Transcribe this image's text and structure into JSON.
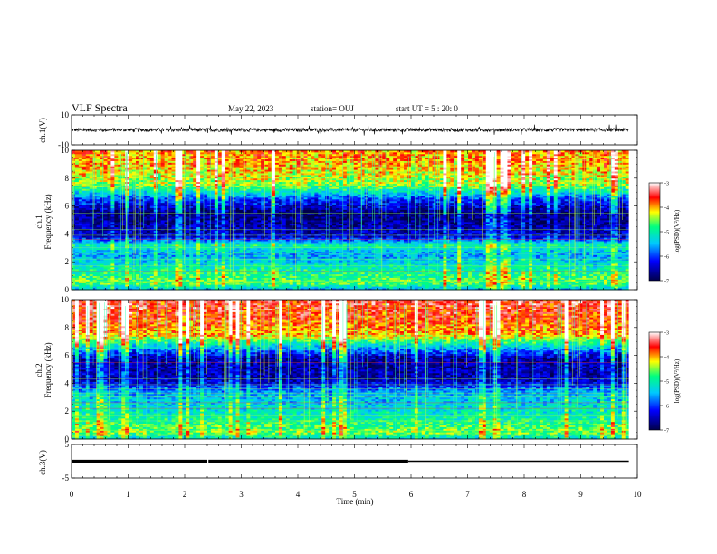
{
  "header": {
    "title": "VLF Spectra",
    "date": "May 22, 2023",
    "station": "station= OUJ",
    "start": "start  UT =  5 : 20: 0"
  },
  "colors": {
    "trace": "#000000",
    "colormap": [
      "#00004a",
      "#0000ff",
      "#00c8ff",
      "#00ff7f",
      "#ffff00",
      "#ff0000",
      "#ffffff"
    ]
  },
  "chart_data": [
    {
      "type": "line",
      "name": "ch1-waveform",
      "ylabel": "ch.1(V)",
      "ylim": [
        -10,
        10
      ],
      "yticks": [
        -10,
        10
      ],
      "xlim": [
        0,
        10
      ],
      "trace_level_v": 0
    },
    {
      "type": "heatmap",
      "name": "ch1-spectrogram",
      "ylabel": "ch.1\nFrequency (kHz)",
      "ylabel_line1": "ch.1",
      "ylabel_line2": "Frequency (kHz)",
      "ylim": [
        0,
        10
      ],
      "yticks": [
        0,
        2,
        4,
        6,
        8,
        10
      ],
      "xlim": [
        0,
        10
      ],
      "data_end_min": 9.85,
      "colorbar": {
        "label": "log(PSD)(V²/Hz)",
        "range": [
          -7,
          -3
        ],
        "ticks": [
          -7,
          -6,
          -5,
          -4,
          -3
        ]
      },
      "band_profile": [
        [
          0,
          -5.6
        ],
        [
          0.5,
          -4.6
        ],
        [
          1.5,
          -5.0
        ],
        [
          2.5,
          -5.6
        ],
        [
          3.2,
          -5.0
        ],
        [
          3.8,
          -6.4
        ],
        [
          5.5,
          -6.8
        ],
        [
          6.5,
          -6.0
        ],
        [
          7.5,
          -4.5
        ],
        [
          9,
          -4.0
        ],
        [
          10,
          -3.9
        ]
      ]
    },
    {
      "type": "heatmap",
      "name": "ch2-spectrogram",
      "ylabel": "ch.2\nFrequency (kHz)",
      "ylabel_line1": "ch.2",
      "ylabel_line2": "Frequency (kHz)",
      "ylim": [
        0,
        10
      ],
      "yticks": [
        0,
        2,
        4,
        6,
        8,
        10
      ],
      "xlim": [
        0,
        10
      ],
      "data_end_min": 9.85,
      "colorbar": {
        "label": "log(PSD)(V²/Hz)",
        "range": [
          -7,
          -3
        ],
        "ticks": [
          -7,
          -6,
          -5,
          -4,
          -3
        ]
      },
      "band_profile": [
        [
          0,
          -5.3
        ],
        [
          0.5,
          -4.5
        ],
        [
          1.5,
          -5.0
        ],
        [
          2.5,
          -5.3
        ],
        [
          3.4,
          -5.6
        ],
        [
          4.2,
          -6.5
        ],
        [
          5.8,
          -6.6
        ],
        [
          6.5,
          -5.6
        ],
        [
          7.5,
          -4.0
        ],
        [
          9,
          -3.6
        ],
        [
          10,
          -3.5
        ]
      ]
    },
    {
      "type": "line",
      "name": "ch3-waveform",
      "ylabel": "ch.3(V)",
      "ylim": [
        -5,
        5
      ],
      "yticks": [
        -5,
        5
      ],
      "xlim": [
        0,
        10
      ],
      "level_v": 0,
      "segments": [
        [
          0,
          2.4
        ],
        [
          2.42,
          5.95
        ],
        [
          5.95,
          9.85
        ]
      ]
    }
  ],
  "xaxis": {
    "label": "Time (min)",
    "range": [
      0,
      10
    ],
    "ticks": [
      0,
      1,
      2,
      3,
      4,
      5,
      6,
      7,
      8,
      9,
      10
    ]
  }
}
